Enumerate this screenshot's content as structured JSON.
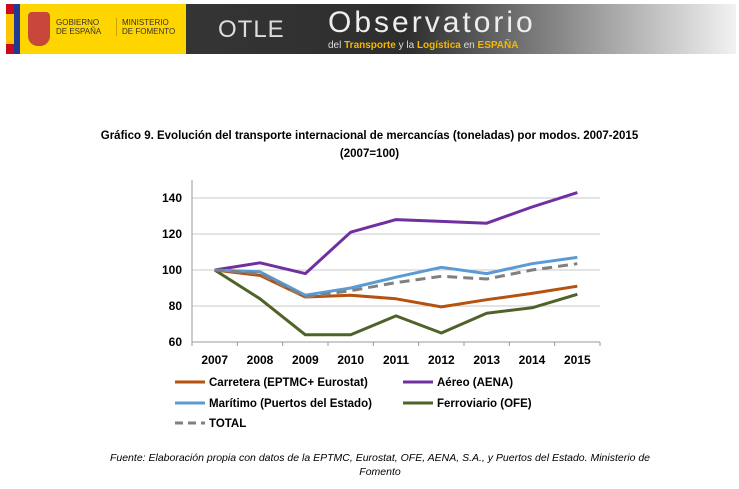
{
  "header": {
    "gob_line1": "GOBIERNO",
    "gob_line2": "DE ESPAÑA",
    "min_line1": "MINISTERIO",
    "min_line2": "DE FOMENTO",
    "logo": "OTLE",
    "title": "Observatorio",
    "subtitle_pre": "del ",
    "subtitle_b1": "Transporte",
    "subtitle_mid": " y la ",
    "subtitle_b2": "Logística",
    "subtitle_mid2": " en ",
    "subtitle_b3": "ESPAÑA"
  },
  "chart_data": {
    "type": "line",
    "title": "Gráfico 9. Evolución del transporte internacional de mercancías (toneladas) por modos. 2007-2015",
    "subtitle": "(2007=100)",
    "categories": [
      "2007",
      "2008",
      "2009",
      "2010",
      "2011",
      "2012",
      "2013",
      "2014",
      "2015"
    ],
    "ylim": [
      60,
      150
    ],
    "yticks": [
      60,
      80,
      100,
      120,
      140
    ],
    "grid": true,
    "legend_placement": "bottom",
    "series": [
      {
        "name": "Carretera (EPTMC+ Eurostat)",
        "color": "#b5520f",
        "dash": false,
        "values": [
          100,
          97,
          85,
          86,
          84,
          79.5,
          83.5,
          87,
          91
        ]
      },
      {
        "name": "Aéreo (AENA)",
        "color": "#7030a0",
        "dash": false,
        "values": [
          100,
          104,
          98,
          121,
          128,
          127,
          126,
          135,
          143
        ]
      },
      {
        "name": "Marítimo (Puertos del Estado)",
        "color": "#5b9bd5",
        "dash": false,
        "values": [
          100,
          99,
          86,
          90,
          96,
          101.5,
          98,
          103.5,
          107
        ]
      },
      {
        "name": "Ferroviario (OFE)",
        "color": "#4f6228",
        "dash": false,
        "values": [
          100,
          84,
          64,
          64,
          74.5,
          65,
          76,
          79,
          86.5
        ]
      },
      {
        "name": "TOTAL",
        "color": "#808080",
        "dash": true,
        "values": [
          100,
          98,
          85,
          88.5,
          93,
          96.5,
          95,
          100,
          103.5
        ]
      }
    ]
  },
  "source": "Fuente: Elaboración propia con datos de la EPTMC, Eurostat, OFE, AENA, S.A., y Puertos del Estado. Ministerio de Fomento"
}
